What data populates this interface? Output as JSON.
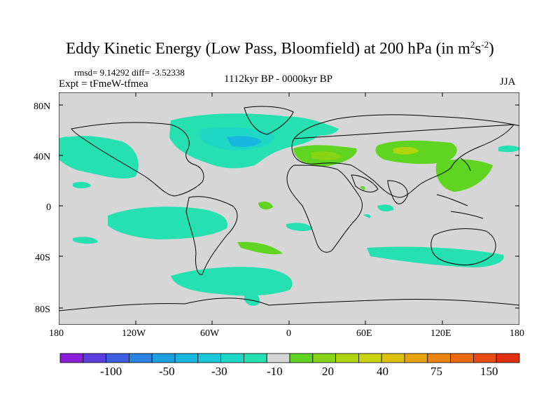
{
  "title": {
    "main": "Eddy Kinetic Energy (Low Pass, Bloomfield) at 200 hPa (in m",
    "sup1": "2",
    "mid": "s",
    "sup2": "-2",
    "end": ")"
  },
  "stats": "rmsd= 9.14292 diff= -3.52338",
  "expt": "Expt = tFmeW-tfmea",
  "period": "1112kyr BP - 0000kyr BP",
  "season": "JJA",
  "lat_labels": [
    "80N",
    "40N",
    "0",
    "40S",
    "80S"
  ],
  "lon_labels": [
    "180",
    "120W",
    "60W",
    "0",
    "60E",
    "120E",
    "180"
  ],
  "colorbar": {
    "labels": [
      "-100",
      "-50",
      "-30",
      "-10",
      "20",
      "40",
      "75",
      "150"
    ],
    "colors": [
      "#8a1ed8",
      "#5b3ee0",
      "#3c5fe0",
      "#2a83e0",
      "#1e9fe0",
      "#18b7e0",
      "#1ac8d8",
      "#1ed7c4",
      "#27e0b2",
      "#d6d6d6",
      "#5fd421",
      "#88d414",
      "#b0d40f",
      "#cad30f",
      "#dec00e",
      "#e8a40f",
      "#ea860f",
      "#eb6a12",
      "#ea4b12",
      "#e2300d"
    ]
  },
  "colors": {
    "ocean_bg": "#d6d6d6",
    "cyan": "#27e0b2",
    "teal_light": "#1ed7c4",
    "teal": "#18b7e0",
    "green": "#5fd421",
    "yellowgreen": "#b0d40f"
  }
}
